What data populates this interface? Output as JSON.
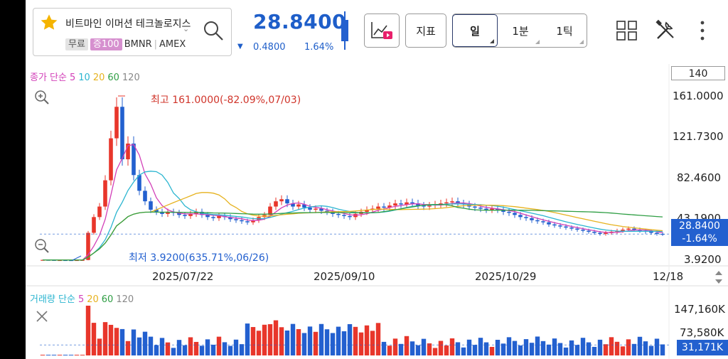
{
  "header": {
    "stock_name": "비트마인 이머션 테크놀로지스",
    "tag_free": "무료",
    "tag_margin": "증100",
    "ticker": "BMNR",
    "exchange": "AMEX",
    "price": "28.8400",
    "change": "0.4800",
    "change_pct": "1.64%",
    "indicator_label": "지표",
    "periods": [
      "일",
      "1분",
      "1틱"
    ],
    "selected_period": "일"
  },
  "colors": {
    "up": "#e8362b",
    "down": "#2360cf",
    "ma5": "#d23fb8",
    "ma10": "#2bb5d0",
    "ma20": "#e6b21e",
    "ma60": "#2f9e44",
    "ma120": "#888888"
  },
  "price_legend": {
    "label": "종가 단순",
    "ma": [
      "5",
      "10",
      "20",
      "60",
      "120"
    ]
  },
  "volume_legend": {
    "label": "거래량 단순",
    "ma": [
      "5",
      "20",
      "60",
      "120"
    ]
  },
  "candle_count": "140",
  "y_axis": [
    "161.0000",
    "121.7300",
    "82.4600",
    "43.1900",
    "3.9200"
  ],
  "current_box": {
    "price": "28.8400",
    "pct": "-1.64%"
  },
  "high_annotation": "최고 161.0000(-82.09%,07/03)",
  "low_annotation": "최저 3.9200(635.71%,06/26)",
  "dates": [
    "2025/07/22",
    "2025/09/10",
    "2025/10/29",
    "12/18"
  ],
  "volume_axis": [
    "147,160K",
    "73,580K"
  ],
  "volume_current": "31,171K",
  "chart_data": {
    "type": "candlestick",
    "ylim": [
      3.92,
      161.0
    ],
    "closes_approx": [
      4.2,
      4.1,
      4.0,
      4.0,
      3.95,
      3.92,
      4.0,
      4.1,
      30,
      45,
      55,
      80,
      120,
      150,
      100,
      115,
      85,
      70,
      60,
      52,
      50,
      48,
      50,
      49,
      47,
      46,
      48,
      50,
      47,
      45,
      44,
      46,
      45,
      43,
      42,
      41,
      40,
      42,
      45,
      47,
      55,
      60,
      62,
      58,
      55,
      57,
      54,
      52,
      53,
      51,
      50,
      48,
      47,
      46,
      45,
      48,
      50,
      52,
      53,
      55,
      54,
      56,
      58,
      57,
      59,
      58,
      56,
      55,
      56,
      57,
      58,
      59,
      60,
      58,
      57,
      55,
      54,
      53,
      52,
      53,
      52,
      50,
      49,
      47,
      45,
      44,
      42,
      41,
      40,
      38,
      37,
      36,
      35,
      34,
      33,
      32,
      31,
      30,
      29,
      30,
      31,
      32,
      33,
      34,
      33,
      32,
      31,
      30,
      29,
      28.84
    ]
  }
}
